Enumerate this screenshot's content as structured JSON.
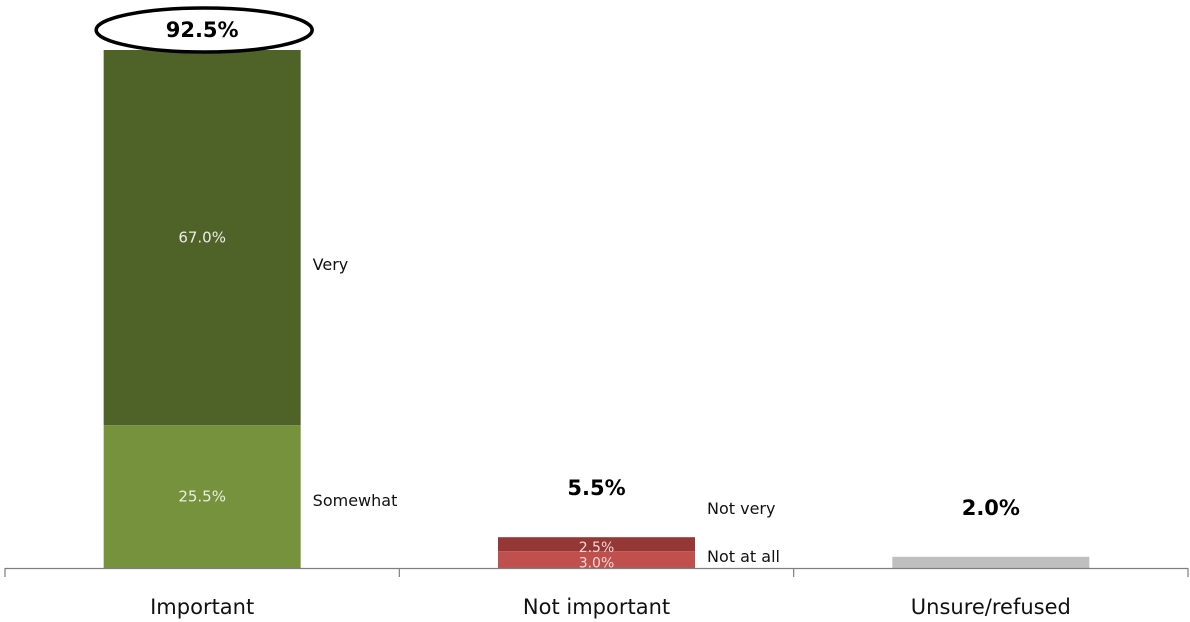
{
  "chart_data": {
    "type": "bar",
    "stacked": true,
    "categories": [
      "Important",
      "Not important",
      "Unsure/refused"
    ],
    "ylim": [
      0,
      92.5
    ],
    "stacks": [
      {
        "category": "Important",
        "total": 92.5,
        "total_label": "92.5%",
        "total_highlighted": true,
        "segments": [
          {
            "series": "Somewhat",
            "value": 25.5,
            "label": "25.5%",
            "color": "#76923c"
          },
          {
            "series": "Very",
            "value": 67.0,
            "label": "67.0%",
            "color": "#4f6228"
          }
        ]
      },
      {
        "category": "Not important",
        "total": 5.5,
        "total_label": "5.5%",
        "total_highlighted": false,
        "segments": [
          {
            "series": "Not at all",
            "value": 3.0,
            "label": "3.0%",
            "color": "#c0504d"
          },
          {
            "series": "Not very",
            "value": 2.5,
            "label": "2.5%",
            "color": "#953735"
          }
        ]
      },
      {
        "category": "Unsure/refused",
        "total": 2.0,
        "total_label": "2.0%",
        "total_highlighted": false,
        "segments": [
          {
            "series": "Unsure/refused",
            "value": 2.0,
            "label": "",
            "color": "#bfbfbf"
          }
        ]
      }
    ],
    "series_labels": [
      {
        "text": "Very",
        "category": "Important",
        "segment": 1
      },
      {
        "text": "Somewhat",
        "category": "Important",
        "segment": 0
      },
      {
        "text": "Not very",
        "category": "Not important",
        "segment": 1
      },
      {
        "text": "Not at all",
        "category": "Not important",
        "segment": 0
      }
    ],
    "title": "",
    "xlabel": "",
    "ylabel": "",
    "grid": false,
    "legend": "inline-right-of-bars"
  }
}
